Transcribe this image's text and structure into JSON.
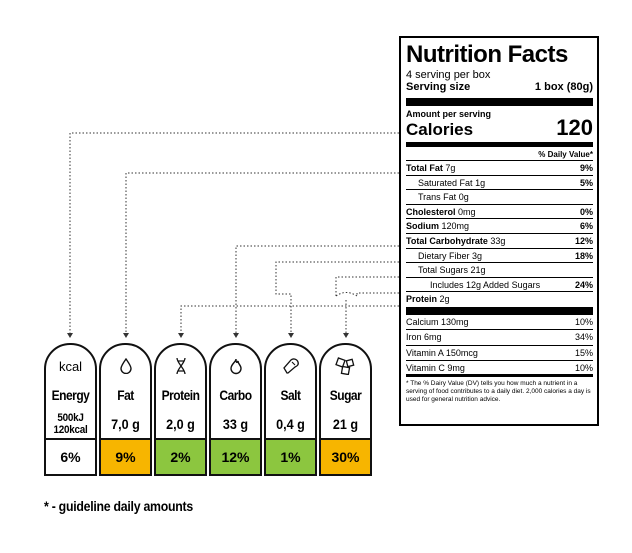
{
  "nutrition": {
    "title": "Nutrition Facts",
    "servings": "4 serving per box",
    "serving_size_label": "Serving size",
    "serving_size_value": "1 box (80g)",
    "amount_per_serving": "Amount per serving",
    "calories_label": "Calories",
    "calories_value": "120",
    "dv_header": "% Daily Value*",
    "rows": [
      {
        "label": "Total Fat",
        "amount": "7g",
        "dv": "9%"
      },
      {
        "label": "Saturated Fat",
        "amount": "1g",
        "dv": "5%"
      },
      {
        "label": "Trans Fat",
        "amount": "0g",
        "dv": ""
      },
      {
        "label": "Cholesterol",
        "amount": "0mg",
        "dv": "0%"
      },
      {
        "label": "Sodium",
        "amount": "120mg",
        "dv": "6%"
      },
      {
        "label": "Total Carbohydrate",
        "amount": "33g",
        "dv": "12%"
      },
      {
        "label": "Dietary Fiber",
        "amount": "3g",
        "dv": "18%"
      },
      {
        "label": "Total Sugars",
        "amount": "21g",
        "dv": ""
      },
      {
        "label": "Includes 12g Added Sugars",
        "amount": "",
        "dv": "24%"
      },
      {
        "label": "Protein",
        "amount": "2g",
        "dv": ""
      }
    ],
    "vitamins": [
      {
        "label": "Calcium 130mg",
        "dv": "10%"
      },
      {
        "label": "Iron 6mg",
        "dv": "34%"
      },
      {
        "label": "Vitamin A 150mcg",
        "dv": "15%"
      },
      {
        "label": "Vitamin C 9mg",
        "dv": "10%"
      }
    ],
    "footnote": "* The % Dairy Value (DV) tells you how much a nutrient in a serving of food contributes to a daily diet. 2,000 calories a day is used for general nutrition advice."
  },
  "badges": [
    {
      "icon": "kcal-icon",
      "icon_text": "kcal",
      "name": "Energy",
      "amount_line1": "500kJ",
      "amount_line2": "120kcal",
      "percent": "6%",
      "color": "#ffffff"
    },
    {
      "icon": "drop-icon",
      "name": "Fat",
      "amount": "7,0 g",
      "percent": "9%",
      "color": "#f7b500"
    },
    {
      "icon": "dna-icon",
      "name": "Protein",
      "amount": "2,0 g",
      "percent": "2%",
      "color": "#8cc63f"
    },
    {
      "icon": "flame-icon",
      "name": "Carbo",
      "amount": "33 g",
      "percent": "12%",
      "color": "#8cc63f"
    },
    {
      "icon": "salt-shaker-icon",
      "name": "Salt",
      "amount": "0,4 g",
      "percent": "1%",
      "color": "#8cc63f"
    },
    {
      "icon": "sugar-cubes-icon",
      "name": "Sugar",
      "amount": "21 g",
      "percent": "30%",
      "color": "#f7b500"
    }
  ],
  "footnote": "* - guideline daily amounts"
}
